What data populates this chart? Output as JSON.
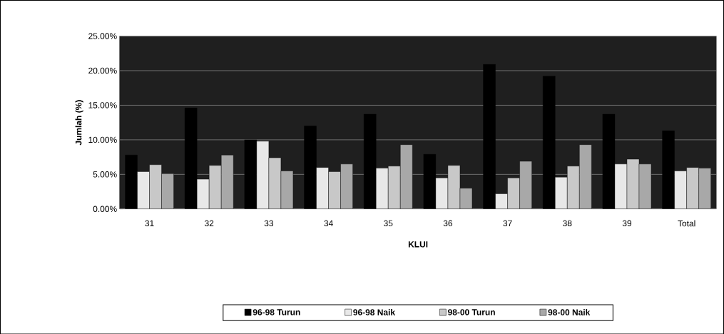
{
  "chart_data": {
    "type": "bar",
    "xlabel": "KLUI",
    "ylabel": "Jumlah (%)",
    "categories": [
      "31",
      "32",
      "33",
      "34",
      "35",
      "36",
      "37",
      "38",
      "39",
      "Total"
    ],
    "series": [
      {
        "name": "96-98 Turun",
        "color": "#000000",
        "values": [
          7.8,
          14.6,
          10.0,
          12.0,
          13.7,
          7.9,
          20.9,
          19.2,
          13.7,
          11.3
        ]
      },
      {
        "name": "96-98 Naik",
        "color": "#e8e8e8",
        "values": [
          5.4,
          4.3,
          9.8,
          6.0,
          5.9,
          4.5,
          2.2,
          4.6,
          6.5,
          5.5
        ]
      },
      {
        "name": "98-00 Turun",
        "color": "#c8c8c8",
        "values": [
          6.4,
          6.3,
          7.4,
          5.4,
          6.2,
          6.3,
          4.5,
          6.2,
          7.2,
          6.0
        ]
      },
      {
        "name": "98-00 Naik",
        "color": "#a8a8a8",
        "values": [
          5.1,
          7.8,
          5.5,
          6.5,
          9.3,
          3.0,
          6.9,
          9.3,
          6.5,
          5.9
        ]
      }
    ],
    "ylim": [
      0,
      25
    ],
    "yticks": [
      {
        "value": 0,
        "label": "0.00%"
      },
      {
        "value": 5,
        "label": "5.00%"
      },
      {
        "value": 10,
        "label": "10.00%"
      },
      {
        "value": 15,
        "label": "15.00%"
      },
      {
        "value": 20,
        "label": "20.00%"
      },
      {
        "value": 25,
        "label": "25.00%"
      }
    ],
    "grid": "y",
    "legend": "bottom"
  }
}
